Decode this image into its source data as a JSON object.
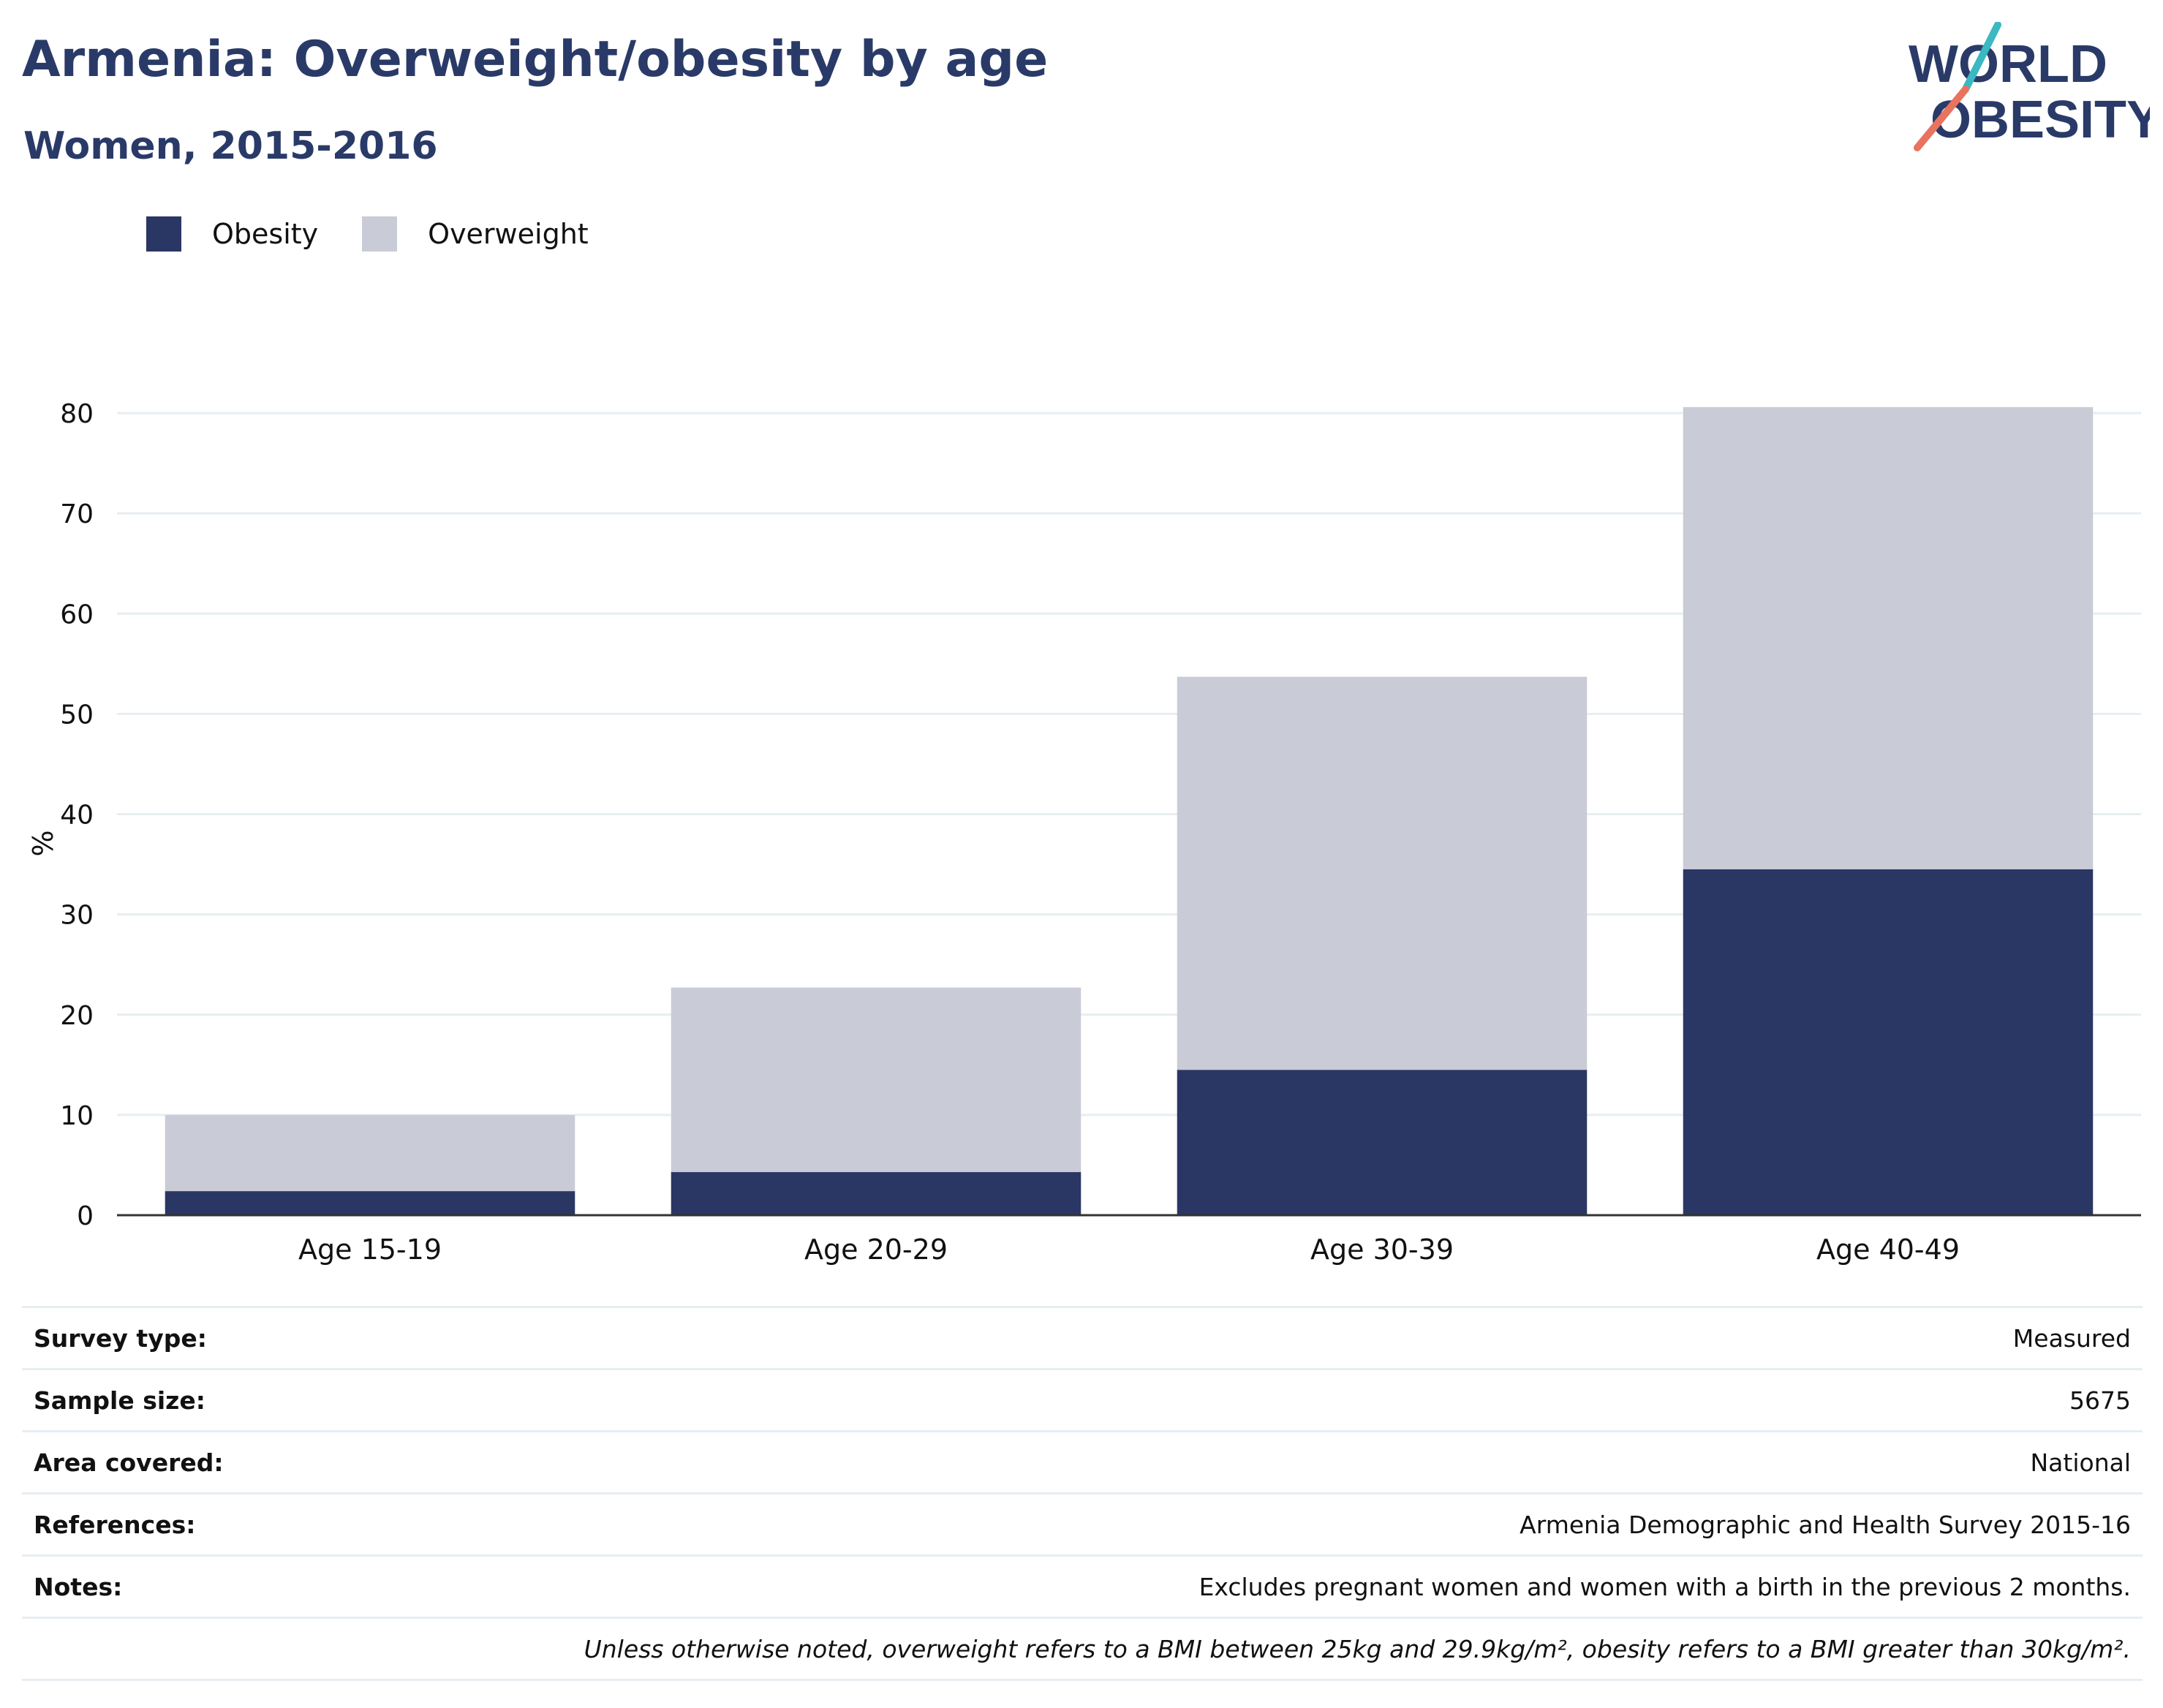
{
  "title": "Armenia: Overweight/obesity by age",
  "subtitle": "Women, 2015-2016",
  "logo": {
    "line1": "WORLD",
    "line2": "OBESITY",
    "colors": {
      "text": "#2a3a68",
      "teal": "#3bb8c2",
      "coral": "#e8735f"
    }
  },
  "legend": [
    {
      "name": "Obesity",
      "color": "#2a3664"
    },
    {
      "name": "Overweight",
      "color": "#c9cbd6"
    }
  ],
  "chart_data": {
    "type": "bar",
    "stacked": true,
    "categories": [
      "Age 15-19",
      "Age 20-29",
      "Age 30-39",
      "Age 40-49"
    ],
    "series": [
      {
        "name": "Obesity",
        "values": [
          2.4,
          4.3,
          14.5,
          34.5
        ],
        "color": "#2a3664"
      },
      {
        "name": "Overweight",
        "values": [
          7.6,
          18.4,
          39.2,
          46.1
        ],
        "color": "#c9cbd6"
      }
    ],
    "ylabel": "%",
    "ylim": [
      0,
      80
    ],
    "yticks": [
      0,
      10,
      20,
      30,
      40,
      50,
      60,
      70,
      80
    ],
    "grid": true,
    "legend_position": "top-left"
  },
  "info": [
    {
      "key": "Survey type:",
      "value": "Measured"
    },
    {
      "key": "Sample size:",
      "value": "5675"
    },
    {
      "key": "Area covered:",
      "value": "National"
    },
    {
      "key": "References:",
      "value": "Armenia Demographic and Health Survey 2015-16"
    },
    {
      "key": "Notes:",
      "value": "Excludes pregnant women and women with a birth in the previous 2 months."
    }
  ],
  "footnote": "Unless otherwise noted, overweight refers to a BMI between 25kg and 29.9kg/m², obesity refers to a BMI greater than 30kg/m²."
}
